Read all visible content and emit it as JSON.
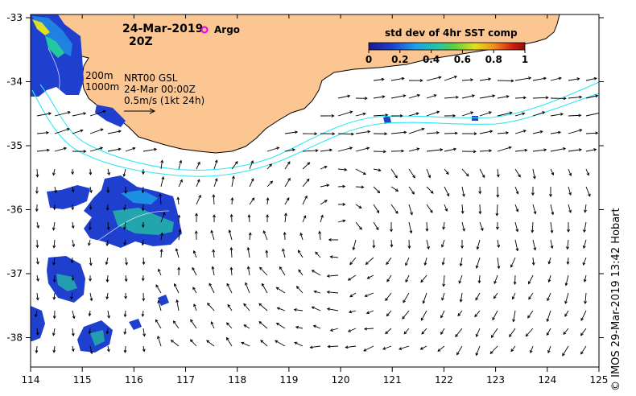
{
  "header": {
    "date": "24-Mar-2019",
    "hour": "20Z",
    "argo_label": "Argo"
  },
  "colorbar": {
    "title": "std dev of 4hr SST comp",
    "ticks": [
      "0",
      "0.2",
      "0.4",
      "0.6",
      "0.8",
      "1"
    ],
    "colors": [
      "#1a1a8c",
      "#1f3fcf",
      "#1f9fe8",
      "#24c8a0",
      "#5cd040",
      "#e0e020",
      "#f09020",
      "#d02010",
      "#8c1010"
    ]
  },
  "legend": {
    "depth_200": "200m",
    "depth_1000": "1000m",
    "source": "NRT00 GSL",
    "date_line": "24-Mar 00:00Z",
    "scale": "0.5m/s (1kt 24h)"
  },
  "axes": {
    "lon_ticks": [
      "114",
      "115",
      "116",
      "117",
      "118",
      "119",
      "120",
      "121",
      "122",
      "123",
      "124",
      "125"
    ],
    "lat_ticks": [
      "-33",
      "-34",
      "-35",
      "-36",
      "-37",
      "-38"
    ]
  },
  "colors": {
    "land": "#fbc692",
    "isobath": "#2ee8f0",
    "argo": "#f000f0"
  },
  "credit": "© IMOS 29-Mar-2019 13:42 Hobart"
}
